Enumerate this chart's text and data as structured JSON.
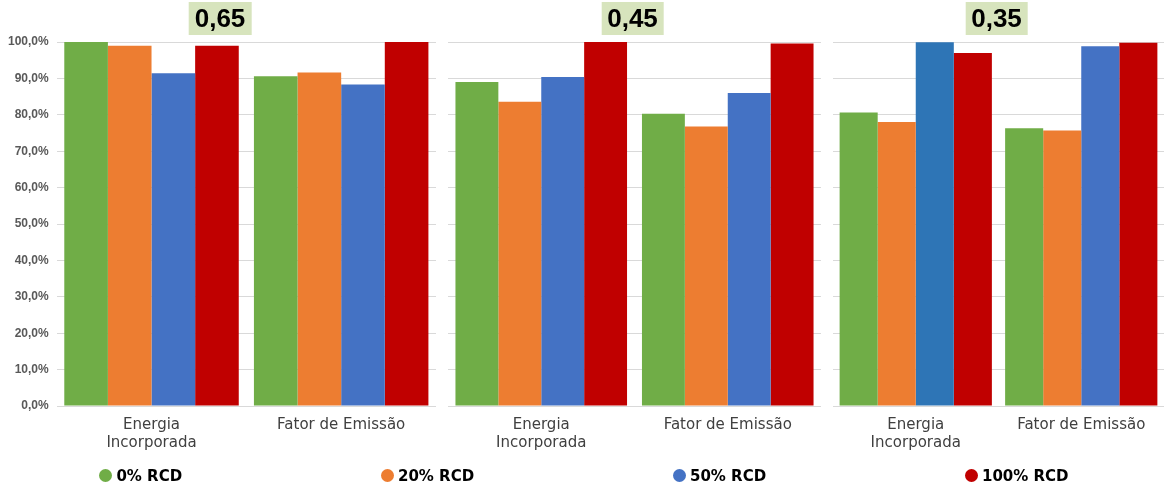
{
  "chart_data": [
    {
      "type": "bar",
      "title": "0,65",
      "categories": [
        "Energia Incorporada",
        "Fator de Emissão"
      ],
      "series": [
        {
          "name": "0% RCD",
          "color": "#70ad47",
          "values": [
            100,
            90.6
          ]
        },
        {
          "name": "20% RCD",
          "color": "#ed7d31",
          "values": [
            99,
            91.6
          ]
        },
        {
          "name": "50% RCD",
          "color": "#4472c4",
          "values": [
            91.4,
            88.3
          ]
        },
        {
          "name": "100% RCD",
          "color": "#c00000",
          "values": [
            99,
            100
          ]
        }
      ],
      "ylim": [
        0,
        100
      ],
      "yticks": [
        {
          "value": 0,
          "label": "0,0%"
        },
        {
          "value": 10,
          "label": "10,0%"
        },
        {
          "value": 20,
          "label": "20,0%"
        },
        {
          "value": 30,
          "label": "30,0%"
        },
        {
          "value": 40,
          "label": "40,0%"
        },
        {
          "value": 50,
          "label": "50,0%"
        },
        {
          "value": 60,
          "label": "60,0%"
        },
        {
          "value": 70,
          "label": "70,0%"
        },
        {
          "value": 80,
          "label": "80,0%"
        },
        {
          "value": 90,
          "label": "90,0%"
        },
        {
          "value": 100,
          "label": "100,0%"
        }
      ],
      "grid": "y",
      "legend": "bottom"
    },
    {
      "type": "bar",
      "title": "0,45",
      "categories": [
        "Energia Incorporada",
        "Fator de Emissão"
      ],
      "series": [
        {
          "color": "#70ad47",
          "values": [
            89,
            80.3
          ]
        },
        {
          "color": "#ed7d31",
          "values": [
            83.6,
            76.8
          ]
        },
        {
          "color": "#4472c4",
          "values": [
            90.4,
            86
          ]
        },
        {
          "color": "#c00000",
          "values": [
            100,
            99.6
          ]
        }
      ],
      "ylim": [
        0,
        100
      ],
      "yticks": [
        {
          "value": 0,
          "label": null
        },
        {
          "value": 10,
          "label": null
        },
        {
          "value": 20,
          "label": null
        },
        {
          "value": 30,
          "label": null
        },
        {
          "value": 40,
          "label": null
        },
        {
          "value": 50,
          "label": null
        },
        {
          "value": 60,
          "label": null
        },
        {
          "value": 70,
          "label": null
        },
        {
          "value": 80,
          "label": null
        },
        {
          "value": 90,
          "label": null
        },
        {
          "value": 100,
          "label": null
        }
      ],
      "grid": "y",
      "tick_labels": "x"
    },
    {
      "type": "bar",
      "title": "0,35",
      "categories": [
        "Energia Incorporada",
        "Fator de Emissão"
      ],
      "series": [
        {
          "color": "#70ad47",
          "values": [
            80.6,
            76.3
          ]
        },
        {
          "color": "#ed7d31",
          "values": [
            78,
            75.7
          ]
        },
        {
          "colors": [
            "#2e75b6",
            "#4472c4"
          ],
          "values": [
            99.9,
            98.8
          ]
        },
        {
          "color": "#c00000",
          "values": [
            97,
            99.8
          ]
        }
      ],
      "ylim": [
        0,
        100
      ],
      "yticks": [
        {
          "value": 0,
          "label": null
        },
        {
          "value": 10,
          "label": null
        },
        {
          "value": 20,
          "label": null
        },
        {
          "value": 30,
          "label": null
        },
        {
          "value": 40,
          "label": null
        },
        {
          "value": 50,
          "label": null
        },
        {
          "value": 60,
          "label": null
        },
        {
          "value": 70,
          "label": null
        },
        {
          "value": 80,
          "label": null
        },
        {
          "value": 90,
          "label": null
        },
        {
          "value": 100,
          "label": null
        }
      ],
      "grid": "y",
      "tick_labels": "x"
    }
  ]
}
